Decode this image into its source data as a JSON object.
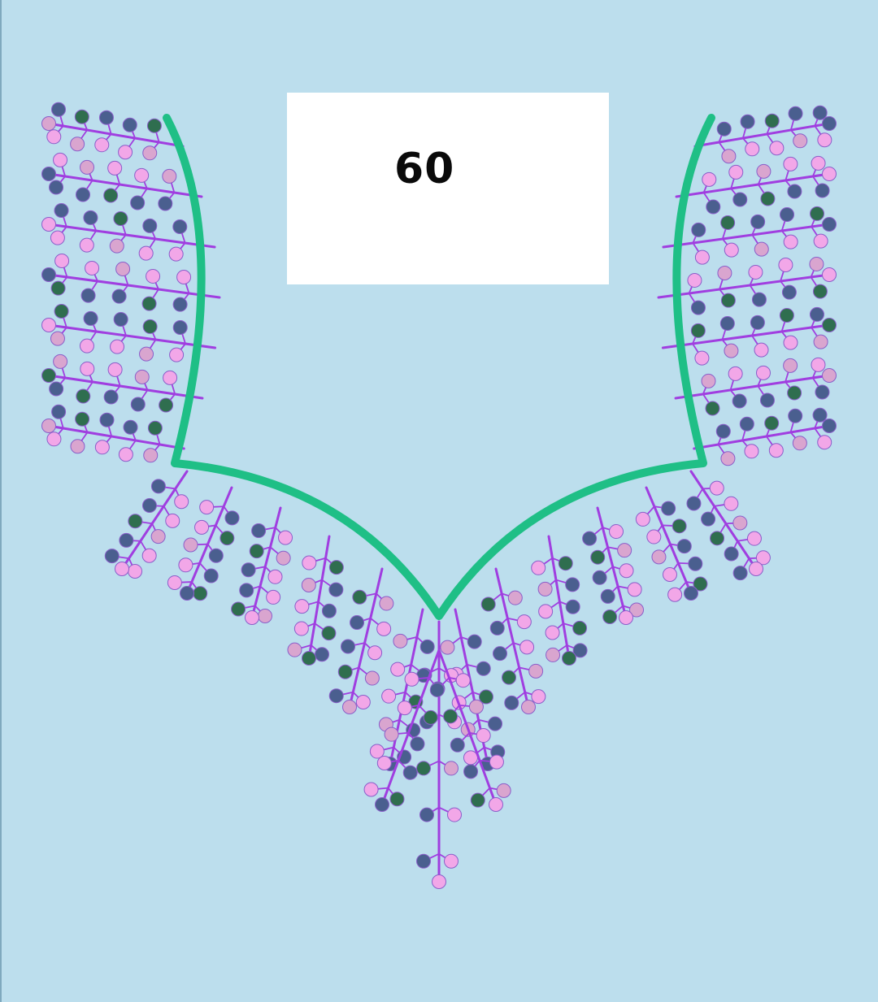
{
  "label": {
    "number": "60"
  },
  "colors": {
    "background": "#bcdeed",
    "neckline": "#1fbf86",
    "stem": "#a03ee0",
    "dot_navy": "#4a5f8f",
    "dot_green": "#2f6e4f",
    "dot_pink": "#f2a7e8",
    "dot_mauve": "#d9a5cf"
  },
  "icons": [
    "embroidery-neckline-motif",
    "vine-branch-icon"
  ]
}
